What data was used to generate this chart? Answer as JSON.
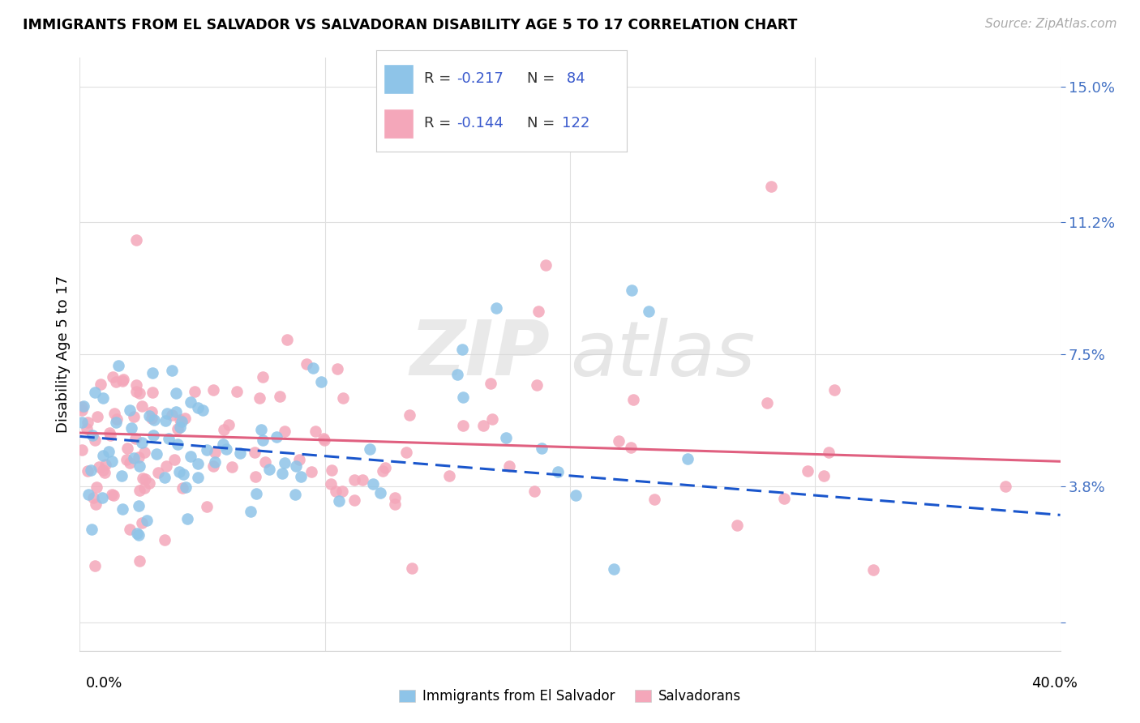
{
  "title": "IMMIGRANTS FROM EL SALVADOR VS SALVADORAN DISABILITY AGE 5 TO 17 CORRELATION CHART",
  "source": "Source: ZipAtlas.com",
  "ylabel": "Disability Age 5 to 17",
  "xlim": [
    0.0,
    0.4
  ],
  "ylim": [
    -0.008,
    0.158
  ],
  "color_blue": "#8ec4e8",
  "color_pink": "#f4a7ba",
  "color_blue_line": "#1a56cc",
  "color_pink_line": "#e06080",
  "color_blue_text": "#3a5acd",
  "color_right_tick": "#4472c4",
  "watermark_zip": "ZIP",
  "watermark_atlas": "atlas",
  "ytick_vals": [
    0.0,
    0.038,
    0.075,
    0.112,
    0.15
  ],
  "ytick_labels": [
    "",
    "3.8%",
    "7.5%",
    "11.2%",
    "15.0%"
  ],
  "xtick_vals": [
    0.0,
    0.1,
    0.2,
    0.3,
    0.4
  ],
  "grid_color": "#e0e0e0"
}
